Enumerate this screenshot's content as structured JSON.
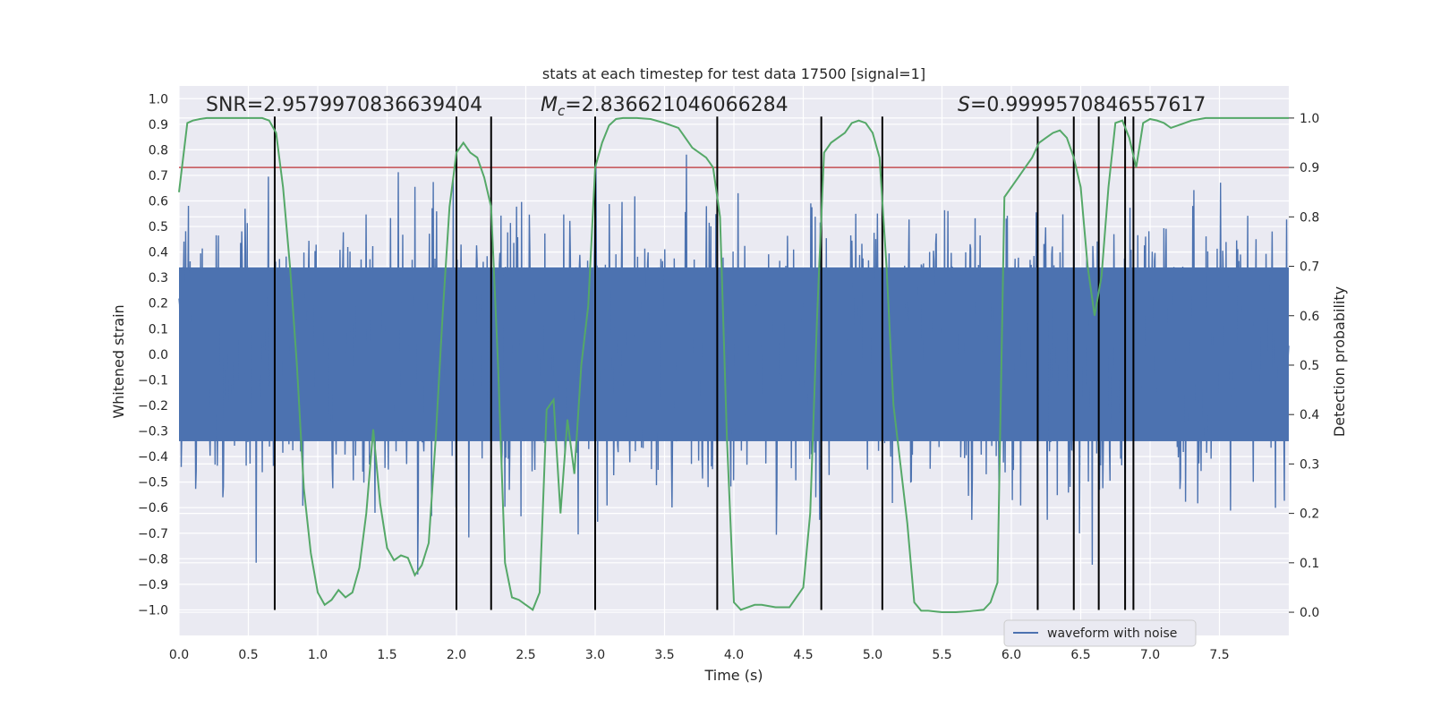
{
  "chart_data": {
    "type": "line",
    "title": "stats at each timestep for test data 17500 [signal=1]",
    "xlabel": "Time (s)",
    "ylabel": "Whitened strain",
    "y2label": "Detection probability",
    "xlim": [
      0.0,
      8.0
    ],
    "ylim": [
      -1.1,
      1.05
    ],
    "y2lim": [
      -0.047,
      1.065
    ],
    "x_ticks": [
      "0.0",
      "0.5",
      "1.0",
      "1.5",
      "2.0",
      "2.5",
      "3.0",
      "3.5",
      "4.0",
      "4.5",
      "5.0",
      "5.5",
      "6.0",
      "6.5",
      "7.0",
      "7.5"
    ],
    "y_ticks": [
      "1.0",
      "0.9",
      "0.8",
      "0.7",
      "0.6",
      "0.5",
      "0.4",
      "0.3",
      "0.2",
      "0.1",
      "0.0",
      "−0.1",
      "−0.2",
      "−0.3",
      "−0.4",
      "−0.5",
      "−0.6",
      "−0.7",
      "−0.8",
      "−0.9",
      "−1.0"
    ],
    "y2_ticks": [
      "1.0",
      "0.9",
      "0.8",
      "0.7",
      "0.6",
      "0.5",
      "0.4",
      "0.3",
      "0.2",
      "0.1",
      "0.0"
    ],
    "annotations": {
      "snr": "SNR=2.9579970836639404",
      "mc_symbol": "M",
      "mc_sub": "c",
      "mc_value": "=2.836621046066284",
      "s_symbol": "S",
      "s_value": "=0.9999570846557617"
    },
    "threshold": {
      "value": 0.9,
      "axis": "y2",
      "color": "#c44e52"
    },
    "vertical_lines": [
      0.69,
      2.0,
      2.25,
      3.0,
      3.88,
      4.63,
      5.07,
      6.19,
      6.45,
      6.63,
      6.82,
      6.88
    ],
    "vertical_line_range": [
      -1.0,
      0.93
    ],
    "legend": {
      "label": "waveform with noise",
      "position": "lower-right"
    },
    "series": [
      {
        "name": "waveform with noise",
        "color": "#4c72b0",
        "kind": "noise",
        "typical_amplitude": 0.45,
        "samples": 2000
      },
      {
        "name": "detection probability",
        "color": "#55a868",
        "axis": "y2",
        "x": [
          0.0,
          0.06,
          0.1,
          0.15,
          0.2,
          0.3,
          0.4,
          0.5,
          0.6,
          0.65,
          0.7,
          0.75,
          0.8,
          0.85,
          0.9,
          0.95,
          1.0,
          1.05,
          1.1,
          1.15,
          1.2,
          1.25,
          1.3,
          1.35,
          1.4,
          1.45,
          1.5,
          1.55,
          1.6,
          1.65,
          1.7,
          1.75,
          1.8,
          1.85,
          1.9,
          1.95,
          2.0,
          2.05,
          2.1,
          2.15,
          2.2,
          2.25,
          2.3,
          2.35,
          2.4,
          2.45,
          2.5,
          2.55,
          2.6,
          2.65,
          2.7,
          2.75,
          2.8,
          2.85,
          2.9,
          2.95,
          3.0,
          3.05,
          3.1,
          3.15,
          3.2,
          3.25,
          3.3,
          3.4,
          3.5,
          3.6,
          3.7,
          3.8,
          3.85,
          3.9,
          3.95,
          4.0,
          4.05,
          4.1,
          4.15,
          4.2,
          4.3,
          4.4,
          4.5,
          4.55,
          4.6,
          4.65,
          4.7,
          4.75,
          4.8,
          4.85,
          4.9,
          4.95,
          5.0,
          5.05,
          5.1,
          5.15,
          5.2,
          5.25,
          5.3,
          5.35,
          5.4,
          5.5,
          5.6,
          5.7,
          5.8,
          5.85,
          5.9,
          5.95,
          6.0,
          6.05,
          6.1,
          6.15,
          6.2,
          6.25,
          6.3,
          6.35,
          6.4,
          6.45,
          6.5,
          6.55,
          6.6,
          6.65,
          6.7,
          6.75,
          6.8,
          6.85,
          6.9,
          6.95,
          7.0,
          7.05,
          7.1,
          7.15,
          7.2,
          7.25,
          7.3,
          7.4,
          7.5,
          7.6,
          7.7,
          7.8,
          7.9,
          8.0
        ],
        "values": [
          0.85,
          0.99,
          0.995,
          0.998,
          1.0,
          1.0,
          1.0,
          1.0,
          1.0,
          0.995,
          0.97,
          0.86,
          0.7,
          0.5,
          0.25,
          0.12,
          0.04,
          0.015,
          0.025,
          0.045,
          0.03,
          0.04,
          0.09,
          0.2,
          0.37,
          0.22,
          0.13,
          0.105,
          0.115,
          0.11,
          0.075,
          0.095,
          0.14,
          0.35,
          0.6,
          0.82,
          0.93,
          0.95,
          0.93,
          0.92,
          0.88,
          0.82,
          0.5,
          0.1,
          0.03,
          0.025,
          0.015,
          0.005,
          0.04,
          0.41,
          0.43,
          0.2,
          0.39,
          0.28,
          0.5,
          0.62,
          0.9,
          0.95,
          0.985,
          0.998,
          1.0,
          1.0,
          1.0,
          0.998,
          0.99,
          0.98,
          0.94,
          0.92,
          0.9,
          0.8,
          0.35,
          0.02,
          0.005,
          0.01,
          0.015,
          0.015,
          0.01,
          0.01,
          0.05,
          0.2,
          0.6,
          0.93,
          0.95,
          0.96,
          0.97,
          0.99,
          0.995,
          0.99,
          0.97,
          0.92,
          0.7,
          0.42,
          0.3,
          0.18,
          0.02,
          0.003,
          0.003,
          0.0,
          0.0,
          0.002,
          0.005,
          0.02,
          0.06,
          0.84,
          0.86,
          0.88,
          0.9,
          0.92,
          0.95,
          0.96,
          0.97,
          0.975,
          0.96,
          0.92,
          0.86,
          0.7,
          0.6,
          0.68,
          0.86,
          0.99,
          0.995,
          0.96,
          0.9,
          0.99,
          0.998,
          0.995,
          0.99,
          0.98,
          0.985,
          0.99,
          0.995,
          1.0,
          1.0,
          1.0,
          1.0,
          1.0,
          1.0,
          1.0
        ]
      }
    ]
  }
}
